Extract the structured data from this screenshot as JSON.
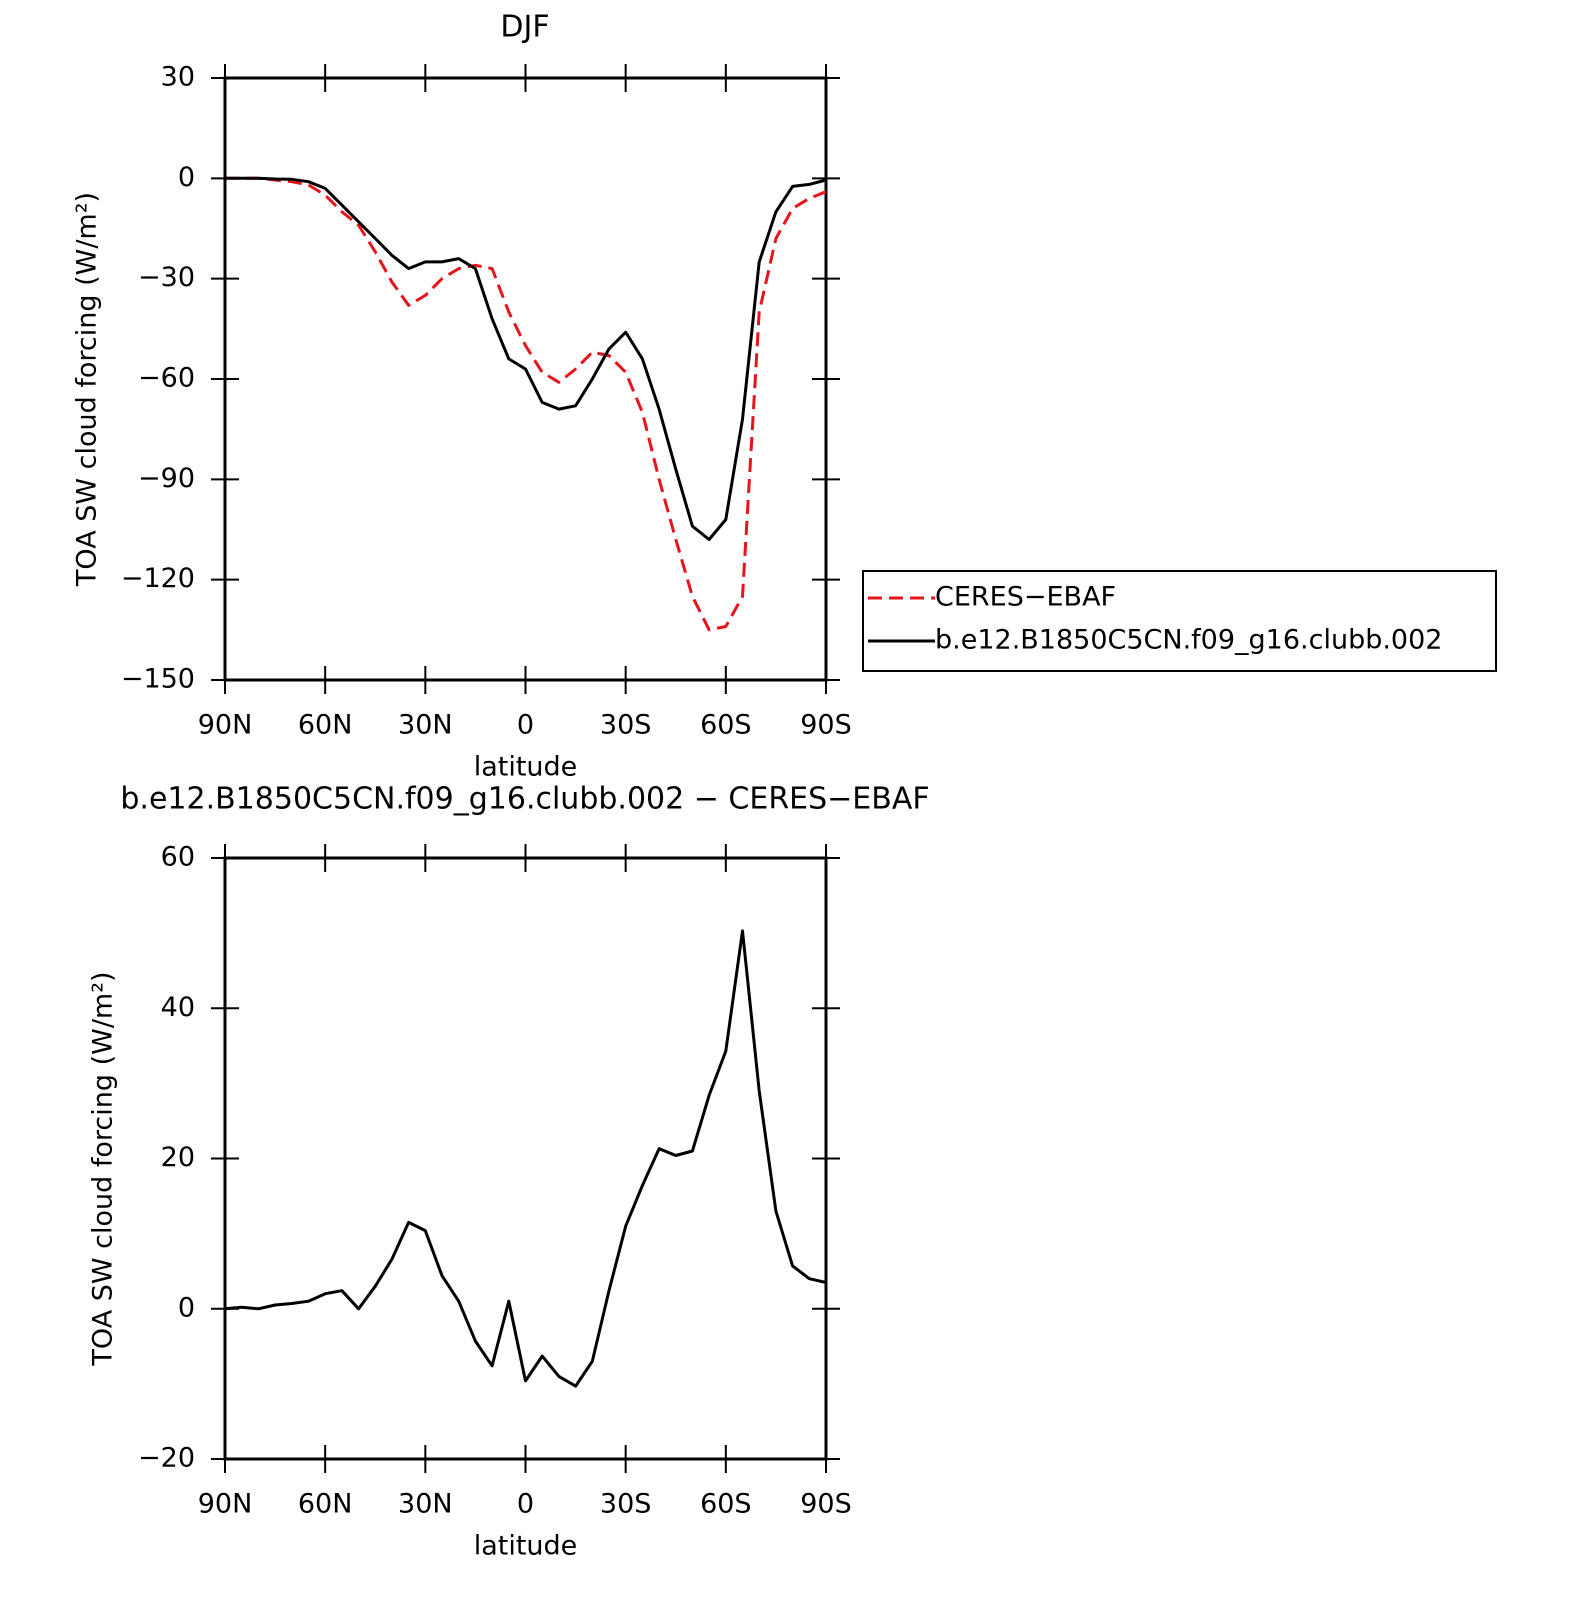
{
  "chart_data": [
    {
      "type": "line",
      "title": "DJF",
      "x_label": "latitude",
      "y_label": "TOA SW cloud forcing (W/m²)",
      "x": [
        90,
        85,
        80,
        75,
        70,
        65,
        60,
        55,
        50,
        45,
        40,
        35,
        30,
        25,
        20,
        15,
        10,
        5,
        0,
        -5,
        -10,
        -15,
        -20,
        -25,
        -30,
        -35,
        -40,
        -45,
        -50,
        -55,
        -60,
        -65,
        -70,
        -75,
        -80,
        -85,
        -90
      ],
      "series": [
        {
          "name": "CERES−EBAF",
          "color": "#e8141b",
          "dash": "dashed",
          "values": [
            0,
            0,
            0,
            -0.5,
            -1,
            -2,
            -5,
            -10,
            -14,
            -22,
            -31,
            -38,
            -35,
            -30,
            -27,
            -26,
            -27,
            -40,
            -50,
            -58,
            -61,
            -57,
            -52,
            -53,
            -58,
            -70,
            -90,
            -108,
            -125,
            -135,
            -134,
            -125,
            -40,
            -18,
            -9,
            -6,
            -4
          ]
        },
        {
          "name": "b.e12.B1850C5CN.f09_g16.clubb.002",
          "color": "#000000",
          "dash": "solid",
          "values": [
            0,
            0,
            0,
            -0.2,
            -0.3,
            -1,
            -3,
            -8,
            -13,
            -18,
            -23,
            -27,
            -25,
            -25,
            -24,
            -27,
            -42,
            -54,
            -57,
            -67,
            -69,
            -68,
            -60,
            -51,
            -46,
            -54,
            -69,
            -87,
            -104,
            -108,
            -102,
            -72,
            -25,
            -10,
            -2.4,
            -1.8,
            -0.5
          ]
        }
      ],
      "xlim": [
        90,
        -90
      ],
      "xticks": [
        {
          "value": 90,
          "label": "90N"
        },
        {
          "value": 60,
          "label": "60N"
        },
        {
          "value": 30,
          "label": "30N"
        },
        0,
        {
          "value": -30,
          "label": "30S"
        },
        {
          "value": -60,
          "label": "60S"
        },
        {
          "value": -90,
          "label": "90S"
        }
      ],
      "ylim": [
        -150,
        30
      ],
      "yticks": [
        {
          "value": -150,
          "label": "−150"
        },
        {
          "value": -120,
          "label": "−120"
        },
        {
          "value": -90,
          "label": "−90"
        },
        {
          "value": -60,
          "label": "−60"
        },
        {
          "value": -30,
          "label": "−30"
        },
        0,
        30
      ],
      "legend": "right"
    },
    {
      "type": "line",
      "title": "b.e12.B1850C5CN.f09_g16.clubb.002 − CERES−EBAF",
      "x_label": "latitude",
      "y_label": "TOA SW cloud forcing (W/m²)",
      "x": [
        90,
        85,
        80,
        75,
        70,
        65,
        60,
        55,
        50,
        45,
        40,
        35,
        30,
        25,
        20,
        15,
        10,
        5,
        0,
        -5,
        -10,
        -15,
        -20,
        -25,
        -30,
        -35,
        -40,
        -45,
        -50,
        -55,
        -60,
        -65,
        -70,
        -75,
        -80,
        -85,
        -90
      ],
      "values": [
        0,
        0.2,
        0,
        0.5,
        0.7,
        1,
        2,
        2.4,
        0,
        3,
        6.6,
        11.5,
        10.4,
        4.4,
        1,
        -4.3,
        -7.6,
        1,
        -9.6,
        -6.3,
        -9,
        -10.3,
        -7,
        2.4,
        11,
        16.4,
        21.3,
        20.4,
        21,
        28.4,
        34.3,
        50.3,
        29,
        13,
        5.7,
        4,
        3.5
      ],
      "color": "#000000",
      "xlim": [
        90,
        -90
      ],
      "xticks": [
        {
          "value": 90,
          "label": "90N"
        },
        {
          "value": 60,
          "label": "60N"
        },
        {
          "value": 30,
          "label": "30N"
        },
        0,
        {
          "value": -30,
          "label": "30S"
        },
        {
          "value": -60,
          "label": "60S"
        },
        {
          "value": -90,
          "label": "90S"
        }
      ],
      "ylim": [
        -20,
        60
      ],
      "yticks": [
        {
          "value": -20,
          "label": "−20"
        },
        0,
        20,
        40,
        60
      ]
    }
  ]
}
